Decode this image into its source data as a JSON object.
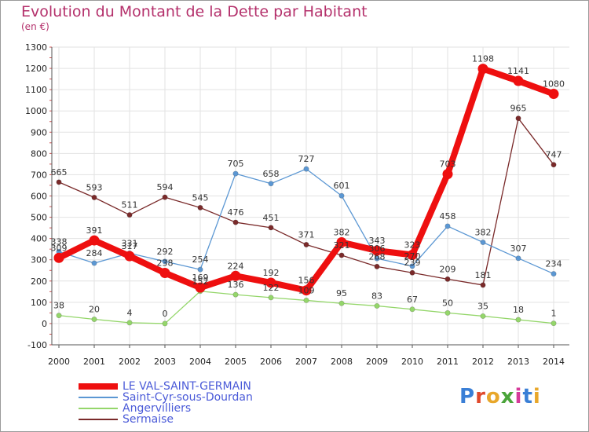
{
  "header": {
    "title": "Evolution du Montant de la Dette par Habitant",
    "unit": "(en €)"
  },
  "logo": {
    "text": "Proxiti",
    "letter_colors": [
      "#3a7fd6",
      "#e0492b",
      "#e8a72b",
      "#4aa43a",
      "#d63a9a",
      "#3a7fd6",
      "#e8a72b"
    ]
  },
  "chart_data": {
    "type": "line",
    "title": "Evolution du Montant de la Dette par Habitant",
    "ylabel": "(en €)",
    "xlabel": "",
    "x": [
      "2000",
      "2001",
      "2002",
      "2003",
      "2004",
      "2005",
      "2006",
      "2007",
      "2008",
      "2009",
      "2010",
      "2011",
      "2012",
      "2013",
      "2014"
    ],
    "ylim": [
      -100,
      1300
    ],
    "yticks": [
      -100,
      0,
      100,
      200,
      300,
      400,
      500,
      600,
      700,
      800,
      900,
      1000,
      1100,
      1200,
      1300
    ],
    "grid": true,
    "legend": "bottom-left",
    "series": [
      {
        "name": "LE VAL-SAINT-GERMAIN",
        "color": "#ee0f0f",
        "values": [
          309,
          391,
          317,
          238,
          169,
          224,
          192,
          156,
          382,
          343,
          323,
          703,
          1198,
          1141,
          1080
        ]
      },
      {
        "name": "Saint-Cyr-sous-Dourdan",
        "color": "#5b97d3",
        "values": [
          338,
          284,
          331,
          292,
          254,
          705,
          658,
          727,
          601,
          306,
          270,
          458,
          382,
          307,
          234
        ]
      },
      {
        "name": "Angervilliers",
        "color": "#94d66a",
        "values": [
          38,
          20,
          4,
          0,
          152,
          136,
          122,
          109,
          95,
          83,
          67,
          50,
          35,
          18,
          1
        ]
      },
      {
        "name": "Sermaise",
        "color": "#7a2a2a",
        "values": [
          665,
          593,
          511,
          594,
          545,
          476,
          451,
          371,
          321,
          268,
          239,
          209,
          181,
          965,
          747
        ]
      }
    ]
  }
}
